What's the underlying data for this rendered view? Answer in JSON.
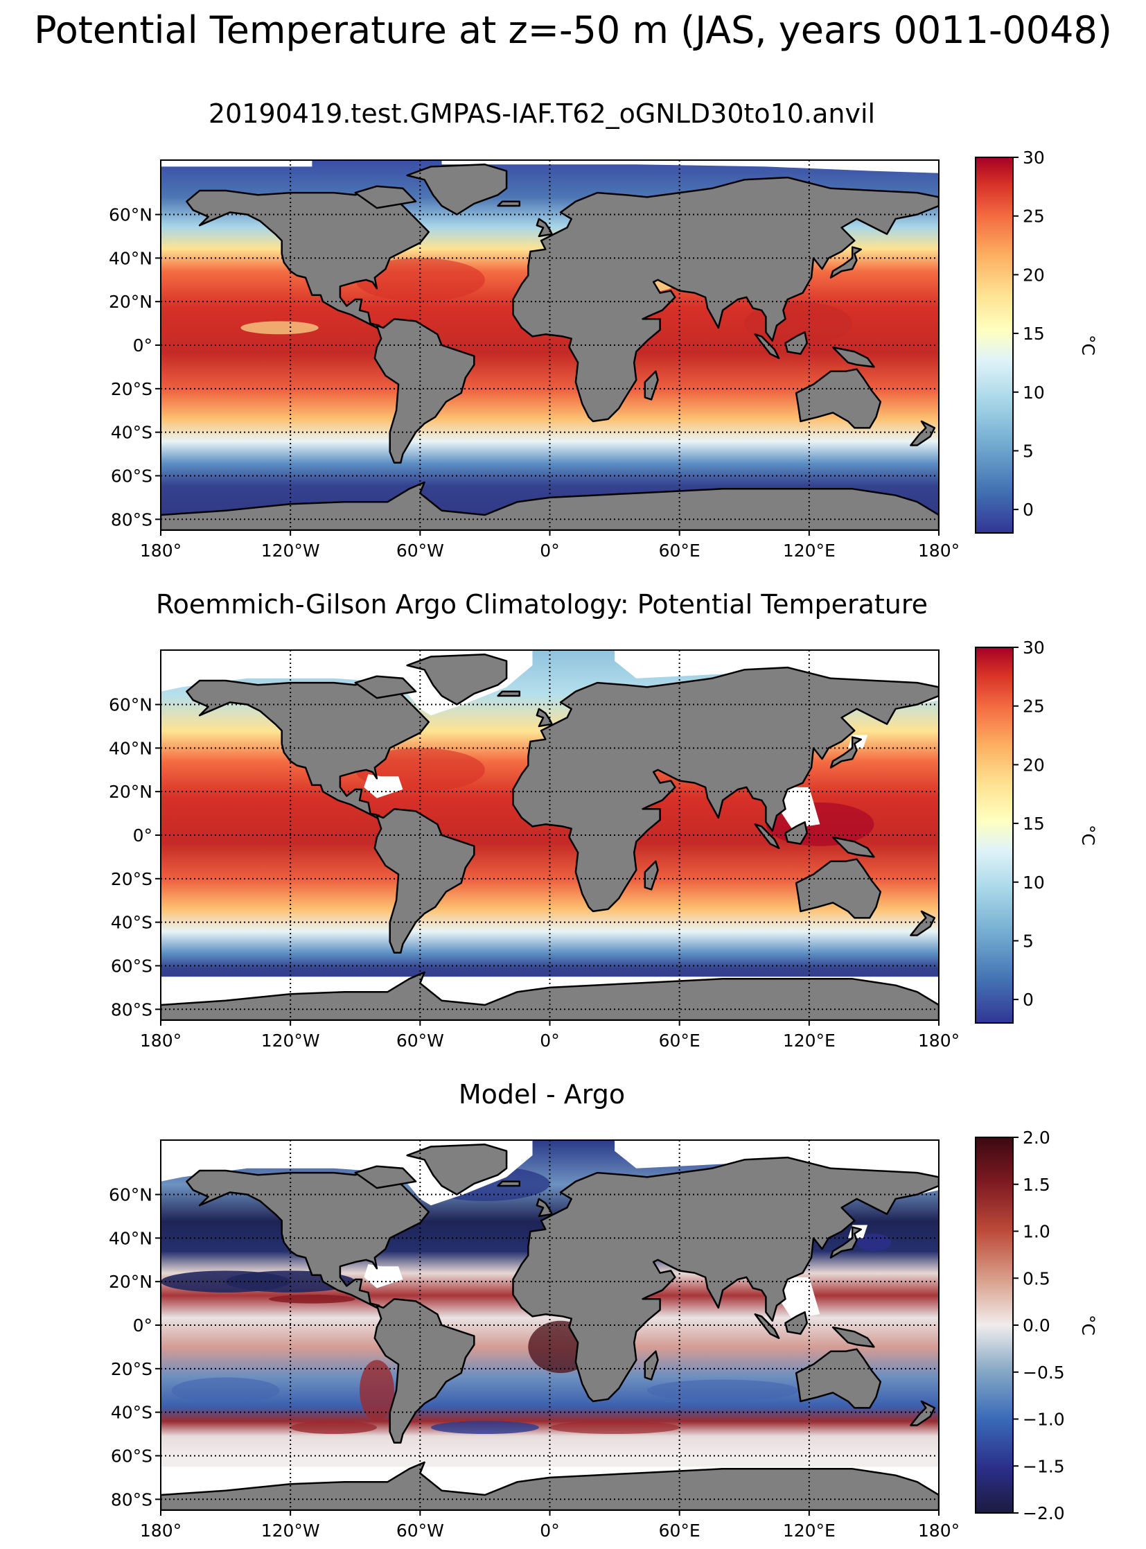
{
  "figure": {
    "suptitle": "Potential Temperature at z=-50 m (JAS, years 0011-0048)"
  },
  "panels": [
    {
      "title": "20190419.test.GMPAS-IAF.T62_oGNLD30to10.anvil",
      "field": "model_potential_temperature",
      "colormap": "RdYlBu_r",
      "colorbar": {
        "ticks": [
          "30",
          "25",
          "20",
          "15",
          "10",
          "5",
          "0"
        ],
        "tick_values": [
          30,
          25,
          20,
          15,
          10,
          5,
          0
        ],
        "range": [
          -2,
          30
        ],
        "label": "°C"
      }
    },
    {
      "title": "Roemmich-Gilson Argo Climatology: Potential Temperature",
      "field": "argo_potential_temperature",
      "colormap": "RdYlBu_r",
      "colorbar": {
        "ticks": [
          "30",
          "25",
          "20",
          "15",
          "10",
          "5",
          "0"
        ],
        "tick_values": [
          30,
          25,
          20,
          15,
          10,
          5,
          0
        ],
        "range": [
          -2,
          30
        ],
        "label": "°C"
      }
    },
    {
      "title": "Model - Argo",
      "field": "difference",
      "colormap": "balance",
      "colorbar": {
        "ticks": [
          "2.0",
          "1.5",
          "1.0",
          "0.5",
          "0.0",
          "−0.5",
          "−1.0",
          "−1.5",
          "−2.0"
        ],
        "tick_values": [
          2.0,
          1.5,
          1.0,
          0.5,
          0.0,
          -0.5,
          -1.0,
          -1.5,
          -2.0
        ],
        "range": [
          -2,
          2
        ],
        "label": "°C"
      }
    }
  ],
  "axes": {
    "lat_labels": [
      "60°N",
      "40°N",
      "20°N",
      "0°",
      "20°S",
      "40°S",
      "60°S",
      "80°S"
    ],
    "lat_values": [
      60,
      40,
      20,
      0,
      -20,
      -40,
      -60,
      -80
    ],
    "lon_labels": [
      "180°",
      "120°W",
      "60°W",
      "0°",
      "60°E",
      "120°E",
      "180°"
    ],
    "lon_values": [
      -180,
      -120,
      -60,
      0,
      60,
      120,
      180
    ],
    "lat_range": [
      -85,
      85
    ],
    "lon_range": [
      -180,
      180
    ],
    "gridlines": "dotted"
  },
  "colors": {
    "land": "#808080",
    "missing": "#ffffff",
    "coast": "#000000"
  }
}
